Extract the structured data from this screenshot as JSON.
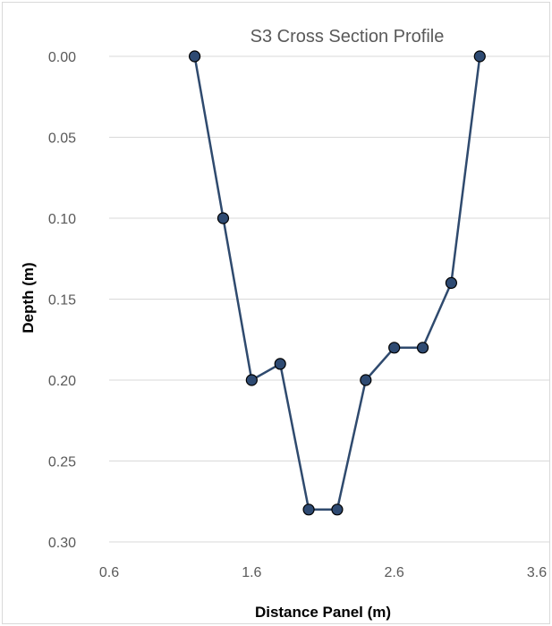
{
  "chart_data": {
    "type": "scatter",
    "title": "S3 Cross Section Profile",
    "xlabel": "Distance Panel (m)",
    "ylabel": "Depth (m)",
    "xlim": [
      0.6,
      3.6
    ],
    "ylim": [
      0,
      0.3
    ],
    "y_inverted": true,
    "x_ticks": [
      "0.6",
      "1.6",
      "2.6",
      "3.6"
    ],
    "y_ticks": [
      "0.00",
      "0.05",
      "0.10",
      "0.15",
      "0.20",
      "0.25",
      "0.30"
    ],
    "grid": true,
    "line_color": "#2f4a6e",
    "marker_color": "#2e4a72",
    "series": [
      {
        "x": [
          1.2,
          1.4,
          1.6,
          1.8,
          2.0,
          2.2,
          2.4,
          2.6,
          2.8,
          3.0,
          3.2
        ],
        "y": [
          0.0,
          0.1,
          0.2,
          0.19,
          0.28,
          0.28,
          0.2,
          0.18,
          0.18,
          0.14,
          0.0
        ]
      }
    ]
  }
}
